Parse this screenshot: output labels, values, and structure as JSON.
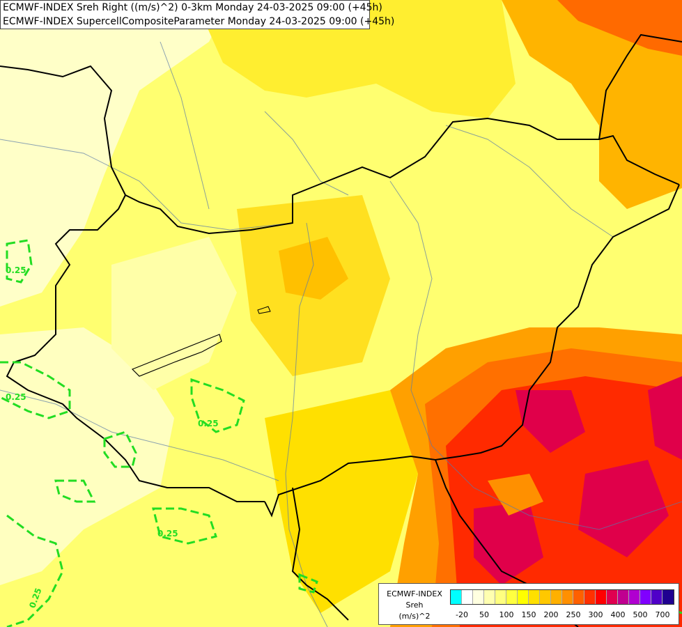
{
  "header": {
    "line1": "ECMWF-INDEX Sreh Right ((m/s)^2) 0-3km Monday 24-03-2025 09:00 (+45h)",
    "line2": "ECMWF-INDEX SupercellCompositeParameter Monday 24-03-2025 09:00 (+45h)"
  },
  "legend": {
    "name_line1": "ECMWF-INDEX",
    "name_line2": "Sreh",
    "name_line3": "(m/s)^2",
    "colors": [
      "#00ffff",
      "#ffffff",
      "#ffffe0",
      "#ffffb0",
      "#ffff80",
      "#ffff40",
      "#ffff00",
      "#ffe000",
      "#ffc800",
      "#ffb000",
      "#ff9000",
      "#ff6000",
      "#ff3000",
      "#ff0000",
      "#e00050",
      "#c00090",
      "#b000d0",
      "#8000ff",
      "#5000c8",
      "#200090"
    ],
    "ticks": [
      "-20",
      "50",
      "100",
      "150",
      "200",
      "250",
      "300",
      "400",
      "500",
      "700"
    ]
  },
  "contour_labels": {
    "scp_a": "0.25",
    "scp_b": "0.25",
    "scp_c": "0.25",
    "scp_d": "0.25",
    "scp_e": "0.25"
  }
}
